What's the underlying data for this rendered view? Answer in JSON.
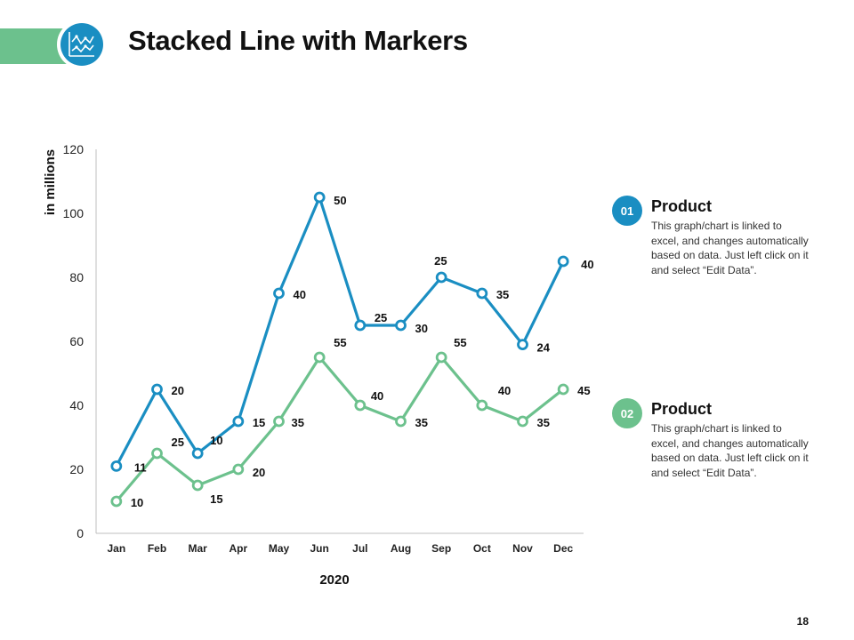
{
  "slide": {
    "title": "Stacked Line with Markers",
    "page_number": "18",
    "logo_icon": "line-chart-icon"
  },
  "colors": {
    "blue": "#1a8ec2",
    "green": "#6cc18d",
    "axis": "#bfbfbf",
    "text": "#111111"
  },
  "legend": [
    {
      "badge": "01",
      "title": "Product",
      "text": "This graph/chart is linked to excel, and changes automatically based on data. Just left click on it and select “Edit Data”.",
      "color": "#1a8ec2"
    },
    {
      "badge": "02",
      "title": "Product",
      "text": "This graph/chart is linked to excel, and changes automatically based on data. Just left click on it and select “Edit Data”.",
      "color": "#6cc18d"
    }
  ],
  "chart_data": {
    "type": "line",
    "stacked": true,
    "markers": true,
    "categories": [
      "Jan",
      "Feb",
      "Mar",
      "Apr",
      "May",
      "Jun",
      "Jul",
      "Aug",
      "Sep",
      "Oct",
      "Nov",
      "Dec"
    ],
    "series": [
      {
        "name": "Product",
        "color": "#6cc18d",
        "values": [
          10,
          25,
          15,
          20,
          35,
          55,
          40,
          35,
          55,
          40,
          35,
          45
        ]
      },
      {
        "name": "Product",
        "color": "#1a8ec2",
        "values": [
          11,
          20,
          10,
          15,
          40,
          50,
          25,
          30,
          25,
          35,
          24,
          40
        ]
      }
    ],
    "ylim": [
      0,
      120
    ],
    "yticks": [
      0,
      20,
      40,
      60,
      80,
      100,
      120
    ],
    "ylabel": "in millions",
    "xlabel": "2020",
    "grid": false,
    "legend_position": "right"
  }
}
